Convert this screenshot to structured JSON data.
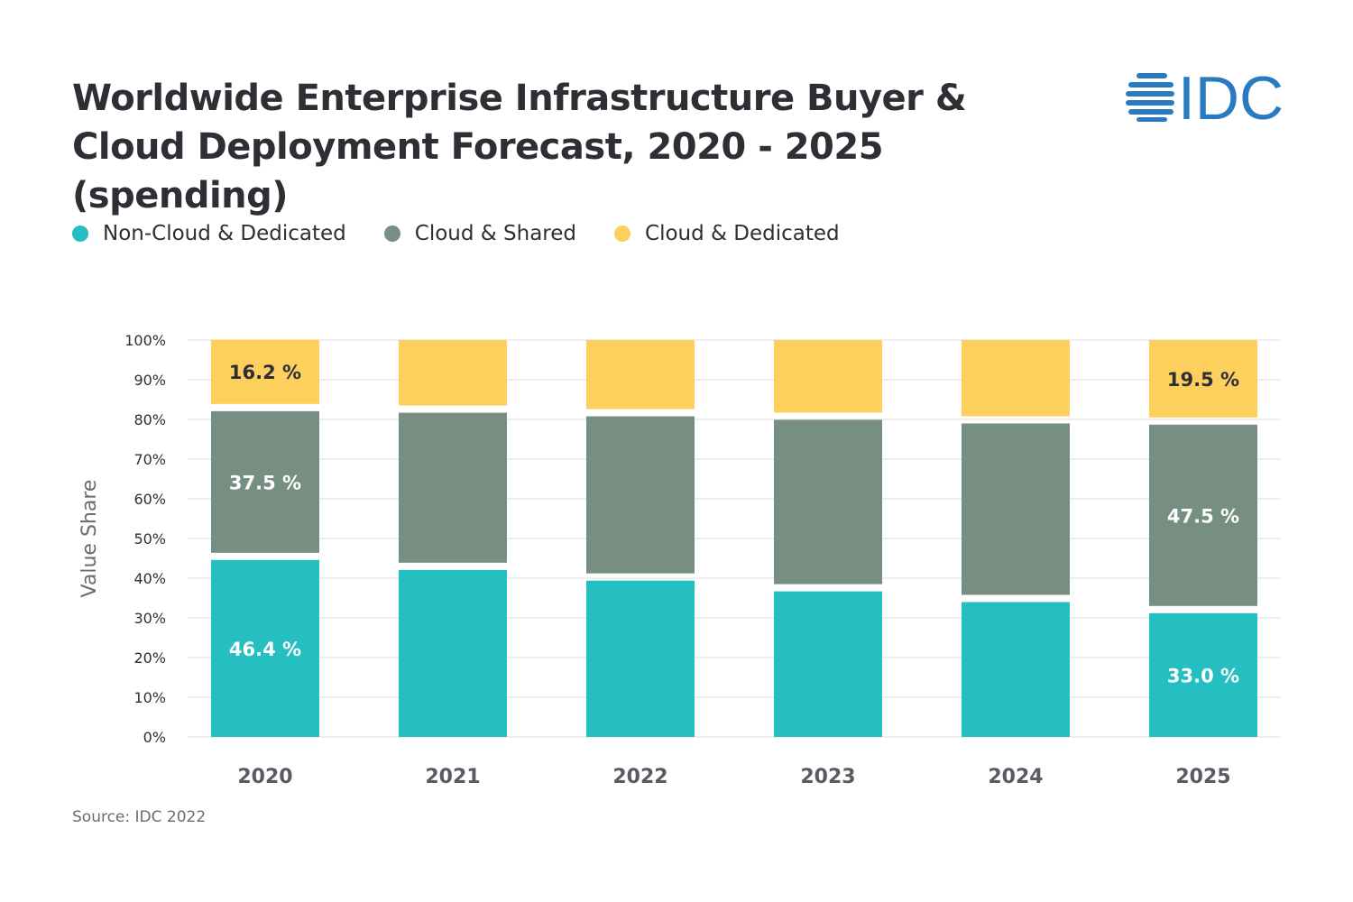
{
  "title": "Worldwide Enterprise Infrastructure Buyer & Cloud Deployment Forecast, 2020 - 2025 (spending)",
  "logo_text": "IDC",
  "source": "Source: IDC 2022",
  "colors": {
    "non_cloud": "#25bfc1",
    "cloud_shared": "#778e83",
    "cloud_dedicated": "#fdcf5d",
    "logo": "#2a7abf"
  },
  "chart_data": {
    "type": "bar",
    "stacked": true,
    "title": "Worldwide Enterprise Infrastructure Buyer & Cloud Deployment Forecast, 2020 - 2025 (spending)",
    "xlabel": "",
    "ylabel": "Value Share",
    "ylim": [
      0,
      100
    ],
    "yticks": [
      "0%",
      "10%",
      "20%",
      "30%",
      "40%",
      "50%",
      "60%",
      "70%",
      "80%",
      "90%",
      "100%"
    ],
    "grid": true,
    "legend_position": "top-left",
    "categories": [
      "2020",
      "2021",
      "2022",
      "2023",
      "2024",
      "2025"
    ],
    "series": [
      {
        "name": "Non-Cloud & Dedicated",
        "color": "#25bfc1",
        "values": [
          46.4,
          43.9,
          41.2,
          38.5,
          35.8,
          33.0
        ],
        "labels": [
          "46.4 %",
          null,
          null,
          null,
          null,
          "33.0 %"
        ]
      },
      {
        "name": "Cloud & Shared",
        "color": "#778e83",
        "values": [
          37.5,
          39.6,
          41.4,
          43.2,
          45.0,
          47.5
        ],
        "labels": [
          "37.5 %",
          null,
          null,
          null,
          null,
          "47.5 %"
        ]
      },
      {
        "name": "Cloud & Dedicated",
        "color": "#fdcf5d",
        "values": [
          16.2,
          16.5,
          17.4,
          18.3,
          19.2,
          19.5
        ],
        "labels": [
          "16.2 %",
          null,
          null,
          null,
          null,
          "19.5 %"
        ]
      }
    ]
  }
}
